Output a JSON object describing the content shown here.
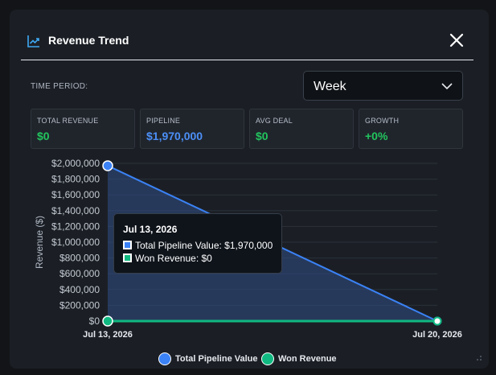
{
  "header": {
    "title": "Revenue Trend",
    "close_icon": "close-icon",
    "trend_icon": "trend-chart-icon"
  },
  "period": {
    "label": "TIME PERIOD:",
    "selected": "Week"
  },
  "cards": [
    {
      "label": "TOTAL REVENUE",
      "value": "$0",
      "color": "#22c55e"
    },
    {
      "label": "PIPELINE",
      "value": "$1,970,000",
      "color": "#4c8ff7"
    },
    {
      "label": "AVG DEAL",
      "value": "$0",
      "color": "#22c55e"
    },
    {
      "label": "GROWTH",
      "value": "+0%",
      "color": "#22c55e"
    }
  ],
  "chart_data": {
    "type": "area",
    "ylabel": "Revenue ($)",
    "xlabel": "",
    "x": [
      "Jul 13, 2026",
      "Jul 20, 2026"
    ],
    "ylim": [
      0,
      2000000
    ],
    "y_ticks": [
      "$0",
      "$200,000",
      "$400,000",
      "$600,000",
      "$800,000",
      "$1,000,000",
      "$1,200,000",
      "$1,400,000",
      "$1,600,000",
      "$1,800,000",
      "$2,000,000"
    ],
    "series": [
      {
        "name": "Total Pipeline Value",
        "values": [
          1970000,
          0
        ],
        "color": "#3b82f6"
      },
      {
        "name": "Won Revenue",
        "values": [
          0,
          0
        ],
        "color": "#10b981"
      }
    ],
    "grid": true,
    "legend": "bottom-center"
  },
  "tooltip": {
    "title": "Jul 13, 2026",
    "rows": [
      {
        "text": "Total Pipeline Value: $1,970,000",
        "color": "#3b82f6"
      },
      {
        "text": "Won Revenue: $0",
        "color": "#10b981"
      }
    ]
  }
}
